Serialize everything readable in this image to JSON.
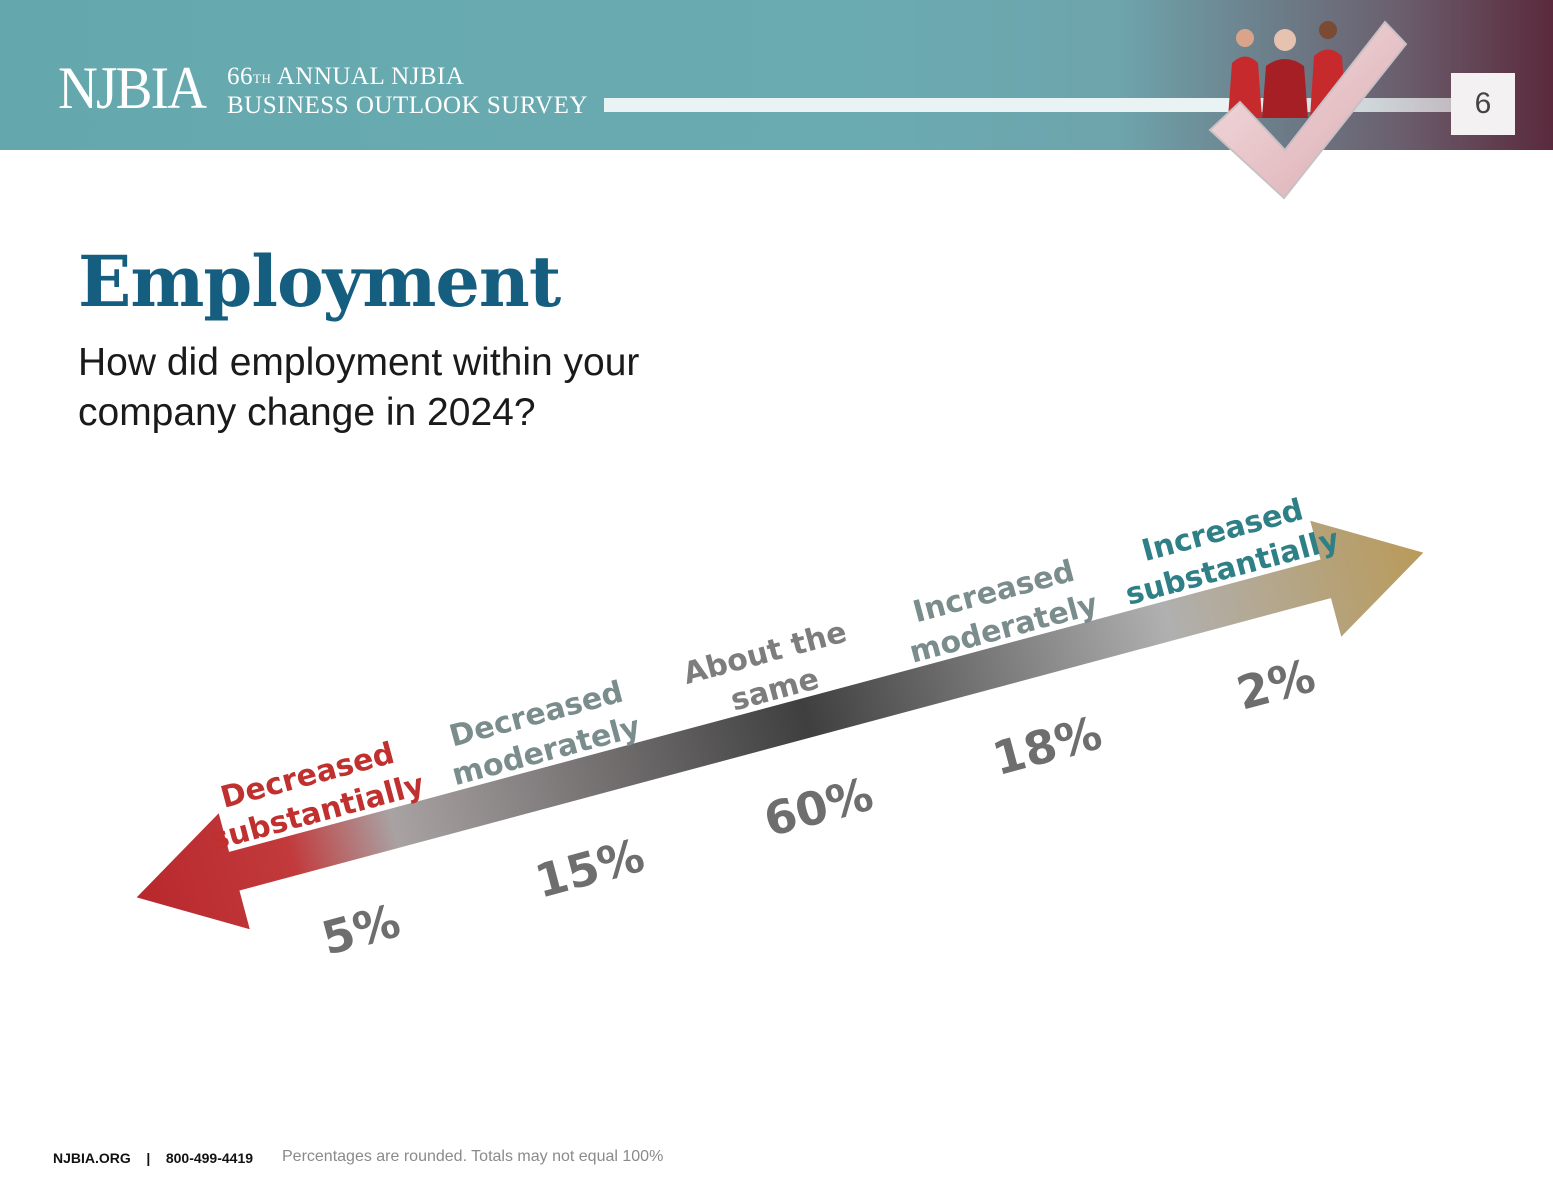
{
  "header": {
    "logo": "NJBIA",
    "edition_number": "66",
    "edition_suffix": "TH",
    "survey_line1": "ANNUAL NJBIA",
    "survey_line2": "BUSINESS OUTLOOK SURVEY",
    "page_number": "6"
  },
  "main": {
    "title": "Employment",
    "question": "How did employment within your company change in 2024?"
  },
  "chart_data": {
    "type": "bar",
    "categories": [
      "Decreased substantially",
      "Decreased moderately",
      "About the same",
      "Increased moderately",
      "Increased substantially"
    ],
    "values": [
      5,
      15,
      60,
      18,
      2
    ],
    "value_labels": [
      "5%",
      "15%",
      "60%",
      "18%",
      "2%"
    ],
    "category_colors": [
      "#c0302f",
      "#7a8c8c",
      "#7d7d7d",
      "#7a8c8c",
      "#2f7f86"
    ]
  },
  "footer": {
    "site": "NJBIA.ORG",
    "separator": "|",
    "phone": "800-499-4419",
    "note": "Percentages are rounded. Totals may not equal 100%"
  },
  "colors": {
    "header_teal": "#64a8ae",
    "title_blue": "#155e80",
    "arrow_left": "#b8282c",
    "arrow_center": "#3f3f3f",
    "arrow_right": "#b99a5a"
  }
}
